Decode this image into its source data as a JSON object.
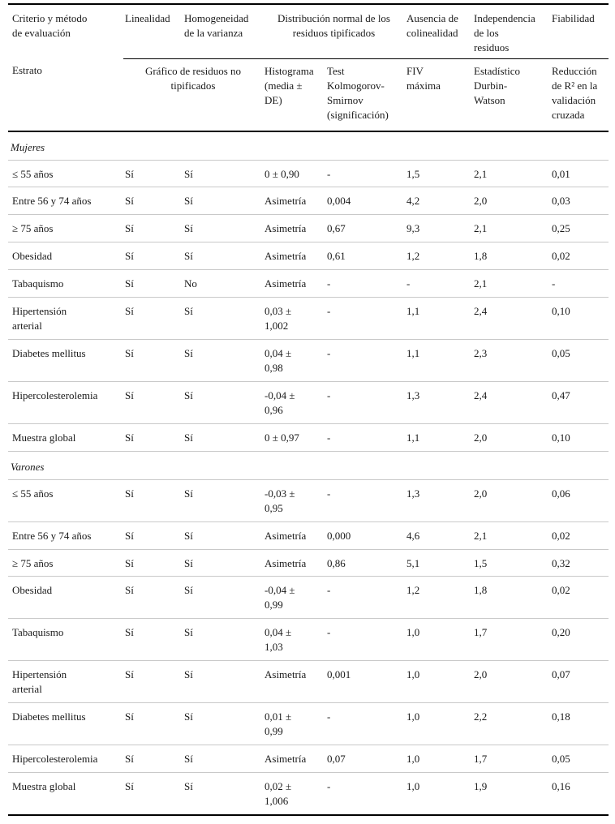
{
  "table": {
    "header_row1": {
      "criterio": "Criterio y método de evaluación",
      "linealidad": "Linealidad",
      "homogeneidad": "Homogeneidad de la varianza",
      "distribucion": "Distribución normal de los residuos tipificados",
      "colinealidad": "Ausencia de colinealidad",
      "independencia": "Independencia de los residuos",
      "fiabilidad": "Fiabilidad"
    },
    "header_row2": {
      "estrato": "Estrato",
      "grafico": "Gráfico de residuos no tipificados",
      "histograma": "Histograma (media ± DE)",
      "kolmogorov": "Test Kolmogorov-Smirnov (significación)",
      "fiv": "FIV máxima",
      "durbin": "Estadístico Durbin-Watson",
      "reduccion": "Reducción de R² en la validación cruzada"
    },
    "column_keys": [
      "estrato",
      "linealidad",
      "homogeneidad",
      "histograma",
      "kolmogorov-smirnov",
      "fiv-maxima",
      "durbin-watson",
      "reduccion-r2"
    ],
    "sections": [
      {
        "title": "Mujeres",
        "rows": [
          [
            "≤ 55 años",
            "Sí",
            "Sí",
            "0 ± 0,90",
            "-",
            "1,5",
            "2,1",
            "0,01"
          ],
          [
            "Entre 56 y 74 años",
            "Sí",
            "Sí",
            "Asimetría",
            "0,004",
            "4,2",
            "2,0",
            "0,03"
          ],
          [
            "≥ 75 años",
            "Sí",
            "Sí",
            "Asimetría",
            "0,67",
            "9,3",
            "2,1",
            "0,25"
          ],
          [
            "Obesidad",
            "Sí",
            "Sí",
            "Asimetría",
            "0,61",
            "1,2",
            "1,8",
            "0,02"
          ],
          [
            "Tabaquismo",
            "Sí",
            "No",
            "Asimetría",
            "-",
            "-",
            "2,1",
            "-"
          ],
          [
            "Hipertensión arterial",
            "Sí",
            "Sí",
            "0,03 ± 1,002",
            "-",
            "1,1",
            "2,4",
            "0,10"
          ],
          [
            "Diabetes mellitus",
            "Sí",
            "Sí",
            "0,04 ± 0,98",
            "-",
            "1,1",
            "2,3",
            "0,05"
          ],
          [
            "Hipercolesterolemia",
            "Sí",
            "Sí",
            "-0,04 ± 0,96",
            "-",
            "1,3",
            "2,4",
            "0,47"
          ],
          [
            "Muestra global",
            "Sí",
            "Sí",
            "0 ± 0,97",
            "-",
            "1,1",
            "2,0",
            "0,10"
          ]
        ]
      },
      {
        "title": "Varones",
        "rows": [
          [
            "≤ 55 años",
            "Sí",
            "Sí",
            "-0,03 ± 0,95",
            "-",
            "1,3",
            "2,0",
            "0,06"
          ],
          [
            "Entre 56 y 74 años",
            "Sí",
            "Sí",
            "Asimetría",
            "0,000",
            "4,6",
            "2,1",
            "0,02"
          ],
          [
            "≥ 75 años",
            "Sí",
            "Sí",
            "Asimetría",
            "0,86",
            "5,1",
            "1,5",
            "0,32"
          ],
          [
            "Obesidad",
            "Sí",
            "Sí",
            "-0,04 ± 0,99",
            "-",
            "1,2",
            "1,8",
            "0,02"
          ],
          [
            "Tabaquismo",
            "Sí",
            "Sí",
            "0,04 ± 1,03",
            "-",
            "1,0",
            "1,7",
            "0,20"
          ],
          [
            "Hipertensión arterial",
            "Sí",
            "Sí",
            "Asimetría",
            "0,001",
            "1,0",
            "2,0",
            "0,07"
          ],
          [
            "Diabetes mellitus",
            "Sí",
            "Sí",
            "0,01 ± 0,99",
            "-",
            "1,0",
            "2,2",
            "0,18"
          ],
          [
            "Hipercolesterolemia",
            "Sí",
            "Sí",
            "Asimetría",
            "0,07",
            "1,0",
            "1,7",
            "0,05"
          ],
          [
            "Muestra global",
            "Sí",
            "Sí",
            "0,02 ± 1,006",
            "-",
            "1,0",
            "1,9",
            "0,16"
          ]
        ]
      }
    ]
  },
  "colors": {
    "rule_strong": "#000000",
    "rule_light": "#c9c9c9",
    "text": "#1a1a1a",
    "background": "#ffffff"
  }
}
